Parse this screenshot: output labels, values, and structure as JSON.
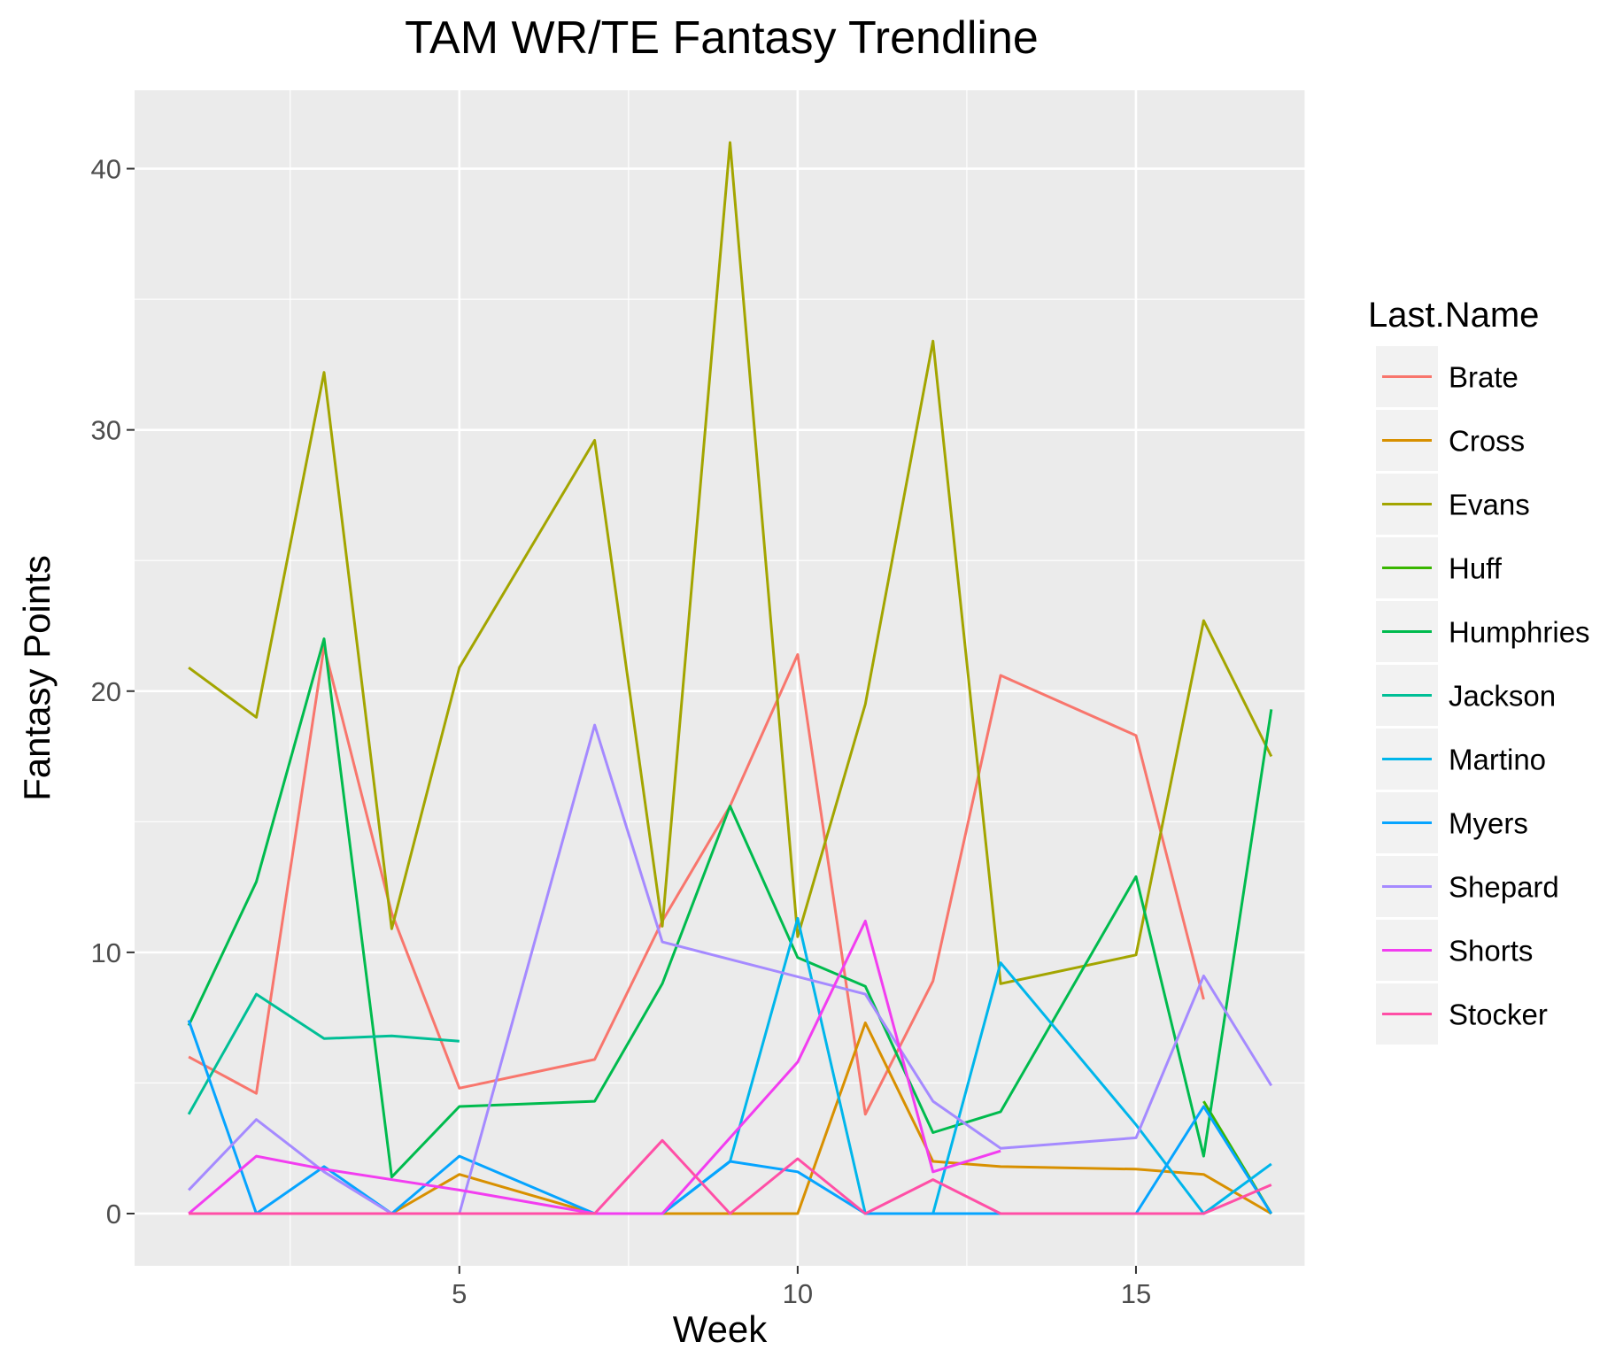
{
  "chart_data": {
    "type": "line",
    "title": "TAM WR/TE Fantasy Trendline",
    "xlabel": "Week",
    "ylabel": "Fantasy Points",
    "xlim": [
      0.2,
      17.5
    ],
    "ylim": [
      -2,
      43
    ],
    "x_ticks": [
      5,
      10,
      15
    ],
    "y_ticks": [
      0,
      10,
      20,
      30,
      40
    ],
    "grid": true,
    "legend": {
      "title": "Last.Name",
      "placement": "right"
    },
    "series": [
      {
        "name": "Brate",
        "color": "#F8766D",
        "points": [
          [
            1,
            6.0
          ],
          [
            2,
            4.6
          ],
          [
            3,
            21.7
          ],
          [
            4,
            11.5
          ],
          [
            5,
            4.8
          ],
          [
            7,
            5.9
          ],
          [
            8,
            11.2
          ],
          [
            9,
            15.6
          ],
          [
            10,
            21.4
          ],
          [
            11,
            3.8
          ],
          [
            12,
            8.9
          ],
          [
            13,
            20.6
          ],
          [
            15,
            18.3
          ],
          [
            16,
            8.2
          ]
        ]
      },
      {
        "name": "Cross",
        "color": "#D89000",
        "points": [
          [
            4,
            0
          ],
          [
            5,
            1.5
          ],
          [
            7,
            0
          ],
          [
            8,
            0
          ],
          [
            9,
            0
          ],
          [
            10,
            0
          ],
          [
            11,
            7.3
          ],
          [
            12,
            2.0
          ],
          [
            13,
            1.8
          ],
          [
            15,
            1.7
          ],
          [
            16,
            1.5
          ],
          [
            17,
            0
          ]
        ]
      },
      {
        "name": "Evans",
        "color": "#A3A500",
        "points": [
          [
            1,
            20.9
          ],
          [
            2,
            19.0
          ],
          [
            3,
            32.2
          ],
          [
            4,
            10.9
          ],
          [
            5,
            20.9
          ],
          [
            7,
            29.6
          ],
          [
            8,
            11.0
          ],
          [
            9,
            41.0
          ],
          [
            10,
            10.6
          ],
          [
            11,
            19.5
          ],
          [
            12,
            33.4
          ],
          [
            13,
            8.8
          ],
          [
            15,
            9.9
          ],
          [
            16,
            22.7
          ],
          [
            17,
            17.5
          ]
        ]
      },
      {
        "name": "Huff",
        "color": "#39B600",
        "points": [
          [
            16,
            4.3
          ],
          [
            17,
            0
          ]
        ]
      },
      {
        "name": "Humphries",
        "color": "#00BB4E",
        "points": [
          [
            1,
            7.2
          ],
          [
            2,
            12.7
          ],
          [
            3,
            22.0
          ],
          [
            4,
            1.4
          ],
          [
            5,
            4.1
          ],
          [
            7,
            4.3
          ],
          [
            8,
            8.8
          ],
          [
            9,
            15.6
          ],
          [
            10,
            9.8
          ],
          [
            11,
            8.7
          ],
          [
            12,
            3.1
          ],
          [
            13,
            3.9
          ],
          [
            15,
            12.9
          ],
          [
            16,
            2.2
          ],
          [
            17,
            19.3
          ]
        ]
      },
      {
        "name": "Jackson",
        "color": "#00BF96",
        "points": [
          [
            1,
            3.8
          ],
          [
            2,
            8.4
          ],
          [
            3,
            6.7
          ],
          [
            4,
            6.8
          ],
          [
            5,
            6.6
          ]
        ]
      },
      {
        "name": "Martino",
        "color": "#00B6EB",
        "points": [
          [
            8,
            0
          ],
          [
            9,
            2.0
          ],
          [
            10,
            11.3
          ],
          [
            11,
            0
          ],
          [
            12,
            0
          ],
          [
            13,
            9.6
          ],
          [
            15,
            3.4
          ],
          [
            16,
            0
          ],
          [
            17,
            1.9
          ]
        ]
      },
      {
        "name": "Myers",
        "color": "#06A4FF",
        "points": [
          [
            1,
            7.4
          ],
          [
            2,
            0
          ],
          [
            3,
            1.8
          ],
          [
            4,
            0
          ],
          [
            5,
            2.2
          ],
          [
            7,
            0
          ],
          [
            8,
            0
          ],
          [
            9,
            2.0
          ],
          [
            10,
            1.6
          ],
          [
            11,
            0
          ],
          [
            12,
            0
          ],
          [
            13,
            0
          ],
          [
            15,
            0
          ],
          [
            16,
            4.1
          ],
          [
            17,
            0
          ]
        ]
      },
      {
        "name": "Shepard",
        "color": "#A58AFF",
        "points": [
          [
            1,
            0.9
          ],
          [
            2,
            3.6
          ],
          [
            3,
            1.6
          ],
          [
            4,
            0
          ],
          [
            5,
            0
          ],
          [
            7,
            18.7
          ],
          [
            8,
            10.4
          ],
          [
            11,
            8.4
          ],
          [
            12,
            4.3
          ],
          [
            13,
            2.5
          ],
          [
            15,
            2.9
          ],
          [
            16,
            9.1
          ],
          [
            17,
            4.9
          ]
        ]
      },
      {
        "name": "Shorts",
        "color": "#F23DF0",
        "points": [
          [
            1,
            0
          ],
          [
            2,
            2.2
          ],
          [
            3,
            1.7
          ],
          [
            5,
            0.9
          ],
          [
            7,
            0
          ],
          [
            8,
            0
          ],
          [
            10,
            5.8
          ],
          [
            11,
            11.2
          ],
          [
            12,
            1.6
          ],
          [
            13,
            2.4
          ]
        ]
      },
      {
        "name": "Stocker",
        "color": "#FF4FA6",
        "points": [
          [
            1,
            0
          ],
          [
            2,
            0
          ],
          [
            3,
            0
          ],
          [
            4,
            0
          ],
          [
            5,
            0
          ],
          [
            7,
            0
          ],
          [
            8,
            2.8
          ],
          [
            9,
            0
          ],
          [
            10,
            2.1
          ],
          [
            11,
            0
          ],
          [
            12,
            1.3
          ],
          [
            13,
            0
          ],
          [
            15,
            0
          ],
          [
            16,
            0
          ],
          [
            17,
            1.1
          ]
        ]
      }
    ]
  }
}
